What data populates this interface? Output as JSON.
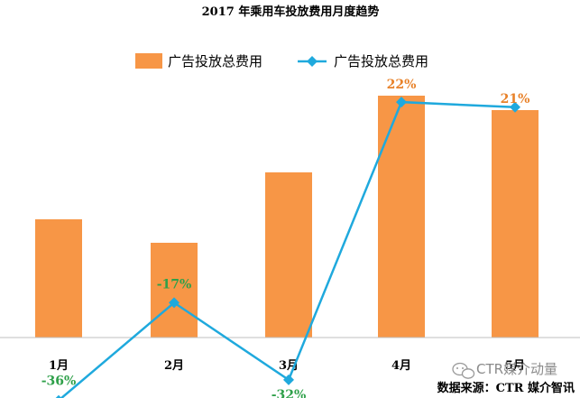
{
  "chart_data": {
    "type": "bar",
    "title": "2017 年乘用车投放费用月度趋势",
    "categories": [
      "1月",
      "2月",
      "3月",
      "4月",
      "5月"
    ],
    "series": [
      {
        "name": "广告投放总费用",
        "type": "bar",
        "color": "#F79646",
        "values": [
          131,
          105,
          183,
          268,
          252
        ],
        "value_note": "relative bar heights; no value axis shown",
        "labels": [
          "",
          "",
          "",
          "22%",
          "21%"
        ]
      },
      {
        "name": "广告投放总费用",
        "type": "line",
        "color": "#1FA9DD",
        "values": [
          -36,
          -17,
          -32,
          22,
          21
        ],
        "labels": [
          "-36%",
          "-17%",
          "-32%",
          "",
          ""
        ]
      }
    ],
    "legend": "top-center",
    "grid": false
  },
  "source_text": "数据来源：CTR 媒介智讯",
  "watermark_text": "CTR媒介动量",
  "watermark_icon": "wechat-icon"
}
